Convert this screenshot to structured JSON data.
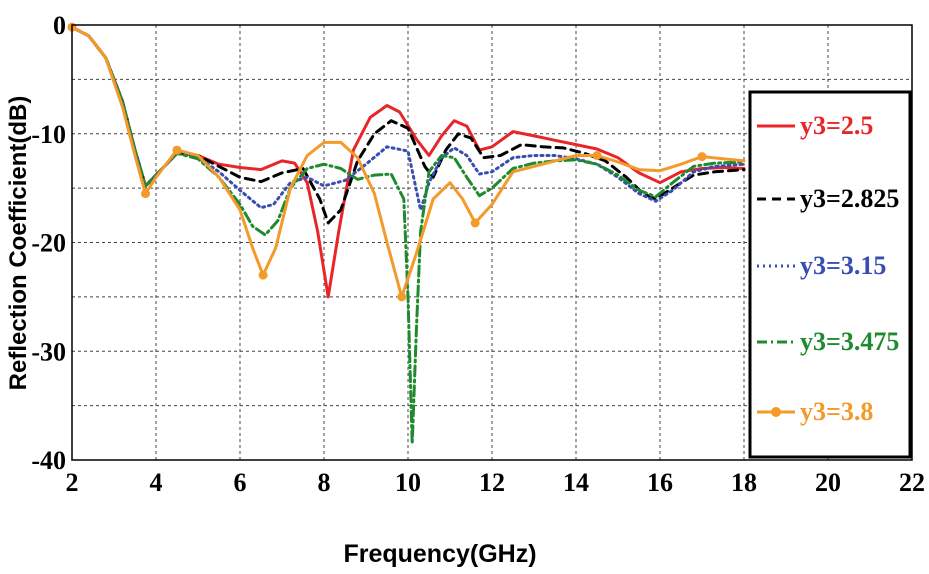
{
  "chart_data": {
    "type": "line",
    "title": "",
    "xlabel": "Frequency(GHz)",
    "ylabel": "Reflection Coefficient(dB)",
    "xlim": [
      2,
      22
    ],
    "ylim": [
      -40,
      0
    ],
    "xticks": [
      2,
      4,
      6,
      8,
      10,
      12,
      14,
      16,
      18,
      20,
      22
    ],
    "yticks": [
      0,
      -10,
      -20,
      -30,
      -40
    ],
    "grid": "dashed",
    "legend": "right",
    "series": [
      {
        "name": "y3=2.5",
        "color": "#e8262a",
        "style": "solid",
        "points": [
          [
            2,
            -0.2
          ],
          [
            2.4,
            -1
          ],
          [
            2.8,
            -3
          ],
          [
            3.2,
            -7
          ],
          [
            3.5,
            -11.5
          ],
          [
            3.75,
            -14.8
          ],
          [
            4.0,
            -13.8
          ],
          [
            4.5,
            -11.8
          ],
          [
            5.0,
            -12
          ],
          [
            5.5,
            -12.8
          ],
          [
            6.0,
            -13.1
          ],
          [
            6.5,
            -13.3
          ],
          [
            7.0,
            -12.5
          ],
          [
            7.3,
            -12.7
          ],
          [
            7.6,
            -14.5
          ],
          [
            7.85,
            -19
          ],
          [
            8.1,
            -25
          ],
          [
            8.35,
            -19
          ],
          [
            8.7,
            -11.5
          ],
          [
            9.1,
            -8.5
          ],
          [
            9.5,
            -7.4
          ],
          [
            9.8,
            -8
          ],
          [
            10.2,
            -10.5
          ],
          [
            10.5,
            -12
          ],
          [
            10.8,
            -10.2
          ],
          [
            11.1,
            -8.8
          ],
          [
            11.4,
            -9.3
          ],
          [
            11.7,
            -11.5
          ],
          [
            12.0,
            -11.2
          ],
          [
            12.5,
            -9.8
          ],
          [
            13.0,
            -10.2
          ],
          [
            13.5,
            -10.6
          ],
          [
            14.0,
            -11
          ],
          [
            14.5,
            -11.4
          ],
          [
            15.0,
            -12.2
          ],
          [
            15.5,
            -13.6
          ],
          [
            16.0,
            -14.5
          ],
          [
            16.5,
            -13.5
          ],
          [
            17.0,
            -13.2
          ],
          [
            17.5,
            -13.1
          ],
          [
            18.0,
            -13.2
          ]
        ]
      },
      {
        "name": "y3=2.825",
        "color": "#000000",
        "style": "dashed",
        "points": [
          [
            2,
            -0.2
          ],
          [
            2.4,
            -1
          ],
          [
            2.8,
            -3
          ],
          [
            3.2,
            -7
          ],
          [
            3.5,
            -11.5
          ],
          [
            3.75,
            -14.8
          ],
          [
            4.0,
            -13.8
          ],
          [
            4.5,
            -11.8
          ],
          [
            5.0,
            -12
          ],
          [
            5.5,
            -13
          ],
          [
            6.0,
            -14
          ],
          [
            6.5,
            -14.4
          ],
          [
            7.0,
            -13.6
          ],
          [
            7.5,
            -13.2
          ],
          [
            7.9,
            -16
          ],
          [
            8.1,
            -18.2
          ],
          [
            8.4,
            -17
          ],
          [
            8.8,
            -12.5
          ],
          [
            9.2,
            -10
          ],
          [
            9.6,
            -8.8
          ],
          [
            10.0,
            -9.5
          ],
          [
            10.4,
            -13
          ],
          [
            10.6,
            -14
          ],
          [
            10.9,
            -11.5
          ],
          [
            11.2,
            -10
          ],
          [
            11.5,
            -10.4
          ],
          [
            11.8,
            -12.2
          ],
          [
            12.2,
            -12
          ],
          [
            12.7,
            -11
          ],
          [
            13.2,
            -11.2
          ],
          [
            13.7,
            -11.3
          ],
          [
            14.2,
            -11.8
          ],
          [
            14.7,
            -12.5
          ],
          [
            15.2,
            -14
          ],
          [
            15.6,
            -15.5
          ],
          [
            15.9,
            -16
          ],
          [
            16.3,
            -15
          ],
          [
            16.8,
            -13.8
          ],
          [
            17.3,
            -13.5
          ],
          [
            18.0,
            -13.3
          ]
        ]
      },
      {
        "name": "y3=3.15",
        "color": "#3a4db0",
        "style": "dotted",
        "points": [
          [
            2,
            -0.2
          ],
          [
            2.4,
            -1
          ],
          [
            2.8,
            -3
          ],
          [
            3.2,
            -7
          ],
          [
            3.5,
            -11.5
          ],
          [
            3.75,
            -14.8
          ],
          [
            4.0,
            -13.8
          ],
          [
            4.5,
            -11.8
          ],
          [
            5.0,
            -12.2
          ],
          [
            5.5,
            -13.5
          ],
          [
            6.0,
            -15.2
          ],
          [
            6.5,
            -16.8
          ],
          [
            6.8,
            -16.5
          ],
          [
            7.2,
            -14.5
          ],
          [
            7.6,
            -14
          ],
          [
            8.0,
            -14.8
          ],
          [
            8.5,
            -14.3
          ],
          [
            9.0,
            -12.8
          ],
          [
            9.5,
            -11.2
          ],
          [
            10.0,
            -11.6
          ],
          [
            10.3,
            -17
          ],
          [
            10.5,
            -14.5
          ],
          [
            10.8,
            -12.2
          ],
          [
            11.1,
            -11.3
          ],
          [
            11.4,
            -12
          ],
          [
            11.7,
            -13.7
          ],
          [
            12.0,
            -13.5
          ],
          [
            12.5,
            -12.2
          ],
          [
            13.0,
            -12
          ],
          [
            13.5,
            -12
          ],
          [
            14.0,
            -12.3
          ],
          [
            14.5,
            -12.8
          ],
          [
            15.0,
            -14
          ],
          [
            15.5,
            -15.5
          ],
          [
            15.9,
            -16.2
          ],
          [
            16.3,
            -15.2
          ],
          [
            16.8,
            -13.5
          ],
          [
            17.3,
            -13
          ],
          [
            18.0,
            -12.8
          ]
        ]
      },
      {
        "name": "y3=3.475",
        "color": "#1f8a2e",
        "style": "dashdot",
        "points": [
          [
            2,
            -0.2
          ],
          [
            2.4,
            -1
          ],
          [
            2.8,
            -3
          ],
          [
            3.2,
            -7
          ],
          [
            3.5,
            -11.5
          ],
          [
            3.75,
            -14.8
          ],
          [
            4.0,
            -13.8
          ],
          [
            4.5,
            -11.8
          ],
          [
            5.0,
            -12.3
          ],
          [
            5.5,
            -14
          ],
          [
            6.0,
            -16.5
          ],
          [
            6.3,
            -18.5
          ],
          [
            6.6,
            -19.3
          ],
          [
            6.9,
            -18
          ],
          [
            7.2,
            -15
          ],
          [
            7.6,
            -13.2
          ],
          [
            8.0,
            -12.8
          ],
          [
            8.4,
            -13.2
          ],
          [
            8.8,
            -14.2
          ],
          [
            9.2,
            -13.8
          ],
          [
            9.6,
            -13.7
          ],
          [
            9.9,
            -16
          ],
          [
            10.0,
            -25
          ],
          [
            10.1,
            -38.5
          ],
          [
            10.2,
            -28
          ],
          [
            10.3,
            -19
          ],
          [
            10.5,
            -13.5
          ],
          [
            10.8,
            -12
          ],
          [
            11.1,
            -12.2
          ],
          [
            11.4,
            -14
          ],
          [
            11.7,
            -15.7
          ],
          [
            12.0,
            -15
          ],
          [
            12.5,
            -13.2
          ],
          [
            13.0,
            -12.7
          ],
          [
            13.5,
            -12.5
          ],
          [
            14.0,
            -12.4
          ],
          [
            14.5,
            -12.8
          ],
          [
            15.0,
            -13.8
          ],
          [
            15.5,
            -15.2
          ],
          [
            15.9,
            -15.8
          ],
          [
            16.3,
            -14.5
          ],
          [
            16.8,
            -13
          ],
          [
            17.3,
            -12.7
          ],
          [
            18.0,
            -12.6
          ]
        ]
      },
      {
        "name": "y3=3.8",
        "color": "#f39a2b",
        "style": "solid-marker",
        "points": [
          [
            2,
            -0.2
          ],
          [
            2.4,
            -1
          ],
          [
            2.8,
            -3
          ],
          [
            3.2,
            -7.5
          ],
          [
            3.5,
            -12
          ],
          [
            3.75,
            -15.5
          ],
          [
            4.0,
            -14
          ],
          [
            4.5,
            -11.5
          ],
          [
            5.0,
            -12
          ],
          [
            5.5,
            -14
          ],
          [
            6.0,
            -17
          ],
          [
            6.3,
            -20.5
          ],
          [
            6.55,
            -23
          ],
          [
            6.85,
            -20.5
          ],
          [
            7.2,
            -15
          ],
          [
            7.6,
            -12
          ],
          [
            8.0,
            -10.8
          ],
          [
            8.4,
            -10.8
          ],
          [
            8.8,
            -12.2
          ],
          [
            9.2,
            -15.5
          ],
          [
            9.5,
            -20
          ],
          [
            9.85,
            -25
          ],
          [
            10.2,
            -21
          ],
          [
            10.6,
            -16
          ],
          [
            11.0,
            -14.5
          ],
          [
            11.3,
            -16
          ],
          [
            11.6,
            -18.2
          ],
          [
            12.0,
            -16.5
          ],
          [
            12.5,
            -13.5
          ],
          [
            13.0,
            -13
          ],
          [
            13.5,
            -12.5
          ],
          [
            14.0,
            -12
          ],
          [
            14.5,
            -12
          ],
          [
            15.0,
            -12.6
          ],
          [
            15.5,
            -13.3
          ],
          [
            16.0,
            -13.4
          ],
          [
            16.5,
            -12.8
          ],
          [
            17.0,
            -12.1
          ],
          [
            17.5,
            -12.3
          ],
          [
            18.0,
            -12.5
          ]
        ],
        "markers": [
          [
            2,
            -0.2
          ],
          [
            3.75,
            -15.5
          ],
          [
            4.5,
            -11.5
          ],
          [
            6.55,
            -23
          ],
          [
            9.85,
            -25
          ],
          [
            11.6,
            -18.2
          ],
          [
            14.5,
            -12
          ],
          [
            17.0,
            -12.1
          ]
        ]
      }
    ]
  }
}
